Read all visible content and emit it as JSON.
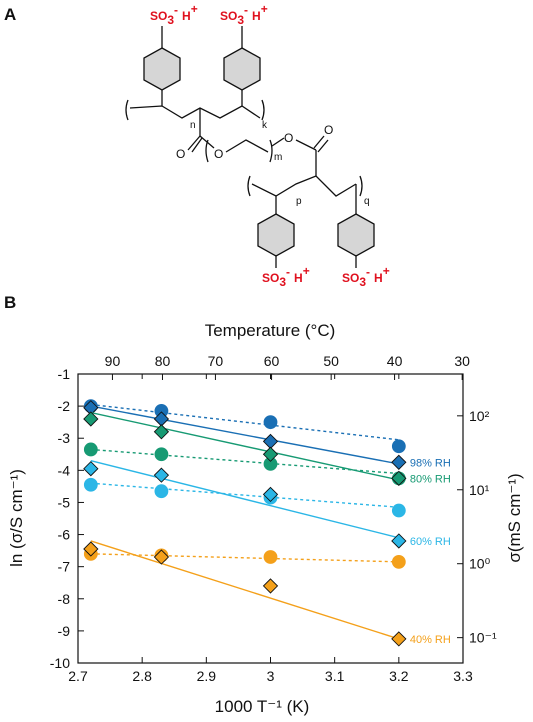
{
  "panels": {
    "a": "A",
    "b": "B"
  },
  "structure": {
    "acid_group": "SO3- H+",
    "acid_main": "SO",
    "acid_sub": "3",
    "acid_sup": "-",
    "acid_counter": "H",
    "acid_counter_sup": "+",
    "subscripts": {
      "n": "n",
      "k": "k",
      "m": "m",
      "p": "p",
      "q": "q"
    },
    "atoms": {
      "o1": "O",
      "o2": "O",
      "o3": "O",
      "o4": "O"
    }
  },
  "chart_data": {
    "type": "scatter",
    "xlabel": "1000 T⁻¹ (K)",
    "ylabel": "ln (σ/S cm⁻¹)",
    "ylabel_right": "σ(mS cm⁻¹)",
    "xlabel_top": "Temperature (°C)",
    "xlim": [
      2.7,
      3.3
    ],
    "ylim": [
      -10,
      -1
    ],
    "x_ticks": [
      "2.7",
      "2.8",
      "2.9",
      "3",
      "3.1",
      "3.2",
      "3.3"
    ],
    "y_ticks": [
      "-1",
      "-2",
      "-3",
      "-4",
      "-5",
      "-6",
      "-7",
      "-8",
      "-9",
      "-10"
    ],
    "top_ticks": [
      "90",
      "80",
      "70",
      "60",
      "50",
      "40",
      "30"
    ],
    "right_ticks": [
      "10²",
      "10¹",
      "10⁰",
      "10⁻¹"
    ],
    "grid": false,
    "series": [
      {
        "name": "98% RH",
        "color": "#1a6fb4",
        "diamonds": [
          [
            2.72,
            -2.05
          ],
          [
            2.83,
            -2.4
          ],
          [
            3.0,
            -3.1
          ],
          [
            3.2,
            -3.75
          ]
        ],
        "circles": [
          [
            2.72,
            -2.0
          ],
          [
            2.83,
            -2.15
          ],
          [
            3.0,
            -2.5
          ],
          [
            3.2,
            -3.25
          ]
        ],
        "solid_fit": [
          -2.0,
          -3.8
        ],
        "dashed_fit": [
          -1.95,
          -3.05
        ]
      },
      {
        "name": "80% RH",
        "color": "#179a73",
        "diamonds": [
          [
            2.72,
            -2.4
          ],
          [
            2.83,
            -2.8
          ],
          [
            3.0,
            -3.5
          ],
          [
            3.2,
            -4.25
          ]
        ],
        "circles": [
          [
            2.72,
            -3.35
          ],
          [
            2.83,
            -3.5
          ],
          [
            3.0,
            -3.8
          ],
          [
            3.2,
            -4.25
          ]
        ],
        "solid_fit": [
          -2.2,
          -4.3
        ],
        "dashed_fit": [
          -3.35,
          -4.1
        ]
      },
      {
        "name": "60% RH",
        "color": "#2bb6e6",
        "diamonds": [
          [
            2.72,
            -3.95
          ],
          [
            2.83,
            -4.15
          ],
          [
            3.0,
            -4.75
          ],
          [
            3.2,
            -6.2
          ]
        ],
        "circles": [
          [
            2.72,
            -4.45
          ],
          [
            2.83,
            -4.65
          ],
          [
            3.0,
            -4.85
          ],
          [
            3.2,
            -5.25
          ]
        ],
        "solid_fit": [
          -3.7,
          -6.1
        ],
        "dashed_fit": [
          -4.4,
          -5.15
        ]
      },
      {
        "name": "40% RH",
        "color": "#f4a01a",
        "diamonds": [
          [
            2.72,
            -6.45
          ],
          [
            2.83,
            -6.7
          ],
          [
            3.0,
            -7.6
          ],
          [
            3.2,
            -9.25
          ]
        ],
        "circles": [
          [
            2.72,
            -6.6
          ],
          [
            2.83,
            -6.65
          ],
          [
            3.0,
            -6.7
          ],
          [
            3.2,
            -6.85
          ]
        ],
        "solid_fit": [
          -6.2,
          -9.25
        ],
        "dashed_fit": [
          -6.6,
          -6.85
        ]
      }
    ]
  }
}
